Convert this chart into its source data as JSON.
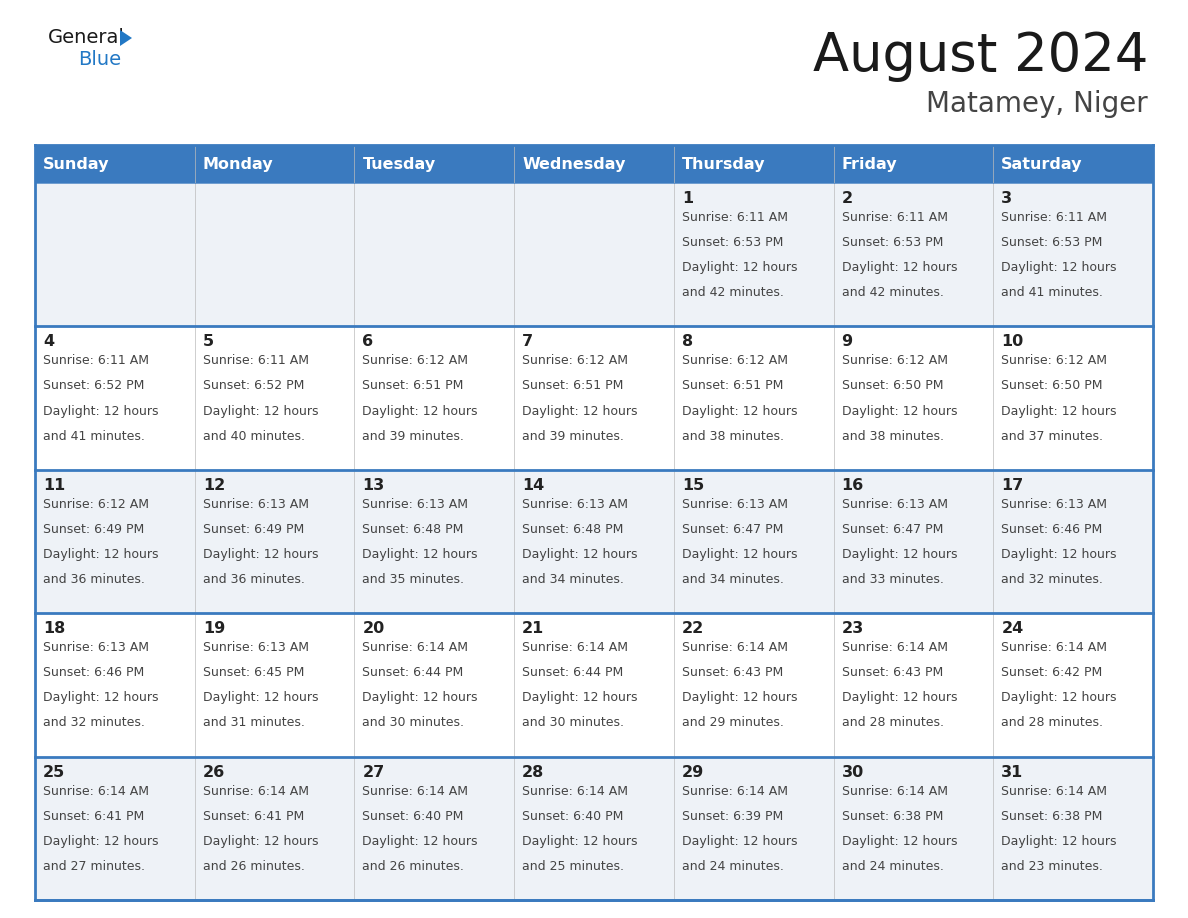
{
  "title": "August 2024",
  "subtitle": "Matamey, Niger",
  "header_color": "#3a7abf",
  "header_text_color": "#ffffff",
  "row_color_odd": "#eef2f7",
  "row_color_even": "#ffffff",
  "border_color": "#3a7abf",
  "text_color": "#333333",
  "day_headers": [
    "Sunday",
    "Monday",
    "Tuesday",
    "Wednesday",
    "Thursday",
    "Friday",
    "Saturday"
  ],
  "calendar_data": [
    [
      {
        "day": "",
        "sunrise": "",
        "sunset": "",
        "daylight": ""
      },
      {
        "day": "",
        "sunrise": "",
        "sunset": "",
        "daylight": ""
      },
      {
        "day": "",
        "sunrise": "",
        "sunset": "",
        "daylight": ""
      },
      {
        "day": "",
        "sunrise": "",
        "sunset": "",
        "daylight": ""
      },
      {
        "day": "1",
        "sunrise": "6:11 AM",
        "sunset": "6:53 PM",
        "daylight": "12 hours and 42 minutes."
      },
      {
        "day": "2",
        "sunrise": "6:11 AM",
        "sunset": "6:53 PM",
        "daylight": "12 hours and 42 minutes."
      },
      {
        "day": "3",
        "sunrise": "6:11 AM",
        "sunset": "6:53 PM",
        "daylight": "12 hours and 41 minutes."
      }
    ],
    [
      {
        "day": "4",
        "sunrise": "6:11 AM",
        "sunset": "6:52 PM",
        "daylight": "12 hours and 41 minutes."
      },
      {
        "day": "5",
        "sunrise": "6:11 AM",
        "sunset": "6:52 PM",
        "daylight": "12 hours and 40 minutes."
      },
      {
        "day": "6",
        "sunrise": "6:12 AM",
        "sunset": "6:51 PM",
        "daylight": "12 hours and 39 minutes."
      },
      {
        "day": "7",
        "sunrise": "6:12 AM",
        "sunset": "6:51 PM",
        "daylight": "12 hours and 39 minutes."
      },
      {
        "day": "8",
        "sunrise": "6:12 AM",
        "sunset": "6:51 PM",
        "daylight": "12 hours and 38 minutes."
      },
      {
        "day": "9",
        "sunrise": "6:12 AM",
        "sunset": "6:50 PM",
        "daylight": "12 hours and 38 minutes."
      },
      {
        "day": "10",
        "sunrise": "6:12 AM",
        "sunset": "6:50 PM",
        "daylight": "12 hours and 37 minutes."
      }
    ],
    [
      {
        "day": "11",
        "sunrise": "6:12 AM",
        "sunset": "6:49 PM",
        "daylight": "12 hours and 36 minutes."
      },
      {
        "day": "12",
        "sunrise": "6:13 AM",
        "sunset": "6:49 PM",
        "daylight": "12 hours and 36 minutes."
      },
      {
        "day": "13",
        "sunrise": "6:13 AM",
        "sunset": "6:48 PM",
        "daylight": "12 hours and 35 minutes."
      },
      {
        "day": "14",
        "sunrise": "6:13 AM",
        "sunset": "6:48 PM",
        "daylight": "12 hours and 34 minutes."
      },
      {
        "day": "15",
        "sunrise": "6:13 AM",
        "sunset": "6:47 PM",
        "daylight": "12 hours and 34 minutes."
      },
      {
        "day": "16",
        "sunrise": "6:13 AM",
        "sunset": "6:47 PM",
        "daylight": "12 hours and 33 minutes."
      },
      {
        "day": "17",
        "sunrise": "6:13 AM",
        "sunset": "6:46 PM",
        "daylight": "12 hours and 32 minutes."
      }
    ],
    [
      {
        "day": "18",
        "sunrise": "6:13 AM",
        "sunset": "6:46 PM",
        "daylight": "12 hours and 32 minutes."
      },
      {
        "day": "19",
        "sunrise": "6:13 AM",
        "sunset": "6:45 PM",
        "daylight": "12 hours and 31 minutes."
      },
      {
        "day": "20",
        "sunrise": "6:14 AM",
        "sunset": "6:44 PM",
        "daylight": "12 hours and 30 minutes."
      },
      {
        "day": "21",
        "sunrise": "6:14 AM",
        "sunset": "6:44 PM",
        "daylight": "12 hours and 30 minutes."
      },
      {
        "day": "22",
        "sunrise": "6:14 AM",
        "sunset": "6:43 PM",
        "daylight": "12 hours and 29 minutes."
      },
      {
        "day": "23",
        "sunrise": "6:14 AM",
        "sunset": "6:43 PM",
        "daylight": "12 hours and 28 minutes."
      },
      {
        "day": "24",
        "sunrise": "6:14 AM",
        "sunset": "6:42 PM",
        "daylight": "12 hours and 28 minutes."
      }
    ],
    [
      {
        "day": "25",
        "sunrise": "6:14 AM",
        "sunset": "6:41 PM",
        "daylight": "12 hours and 27 minutes."
      },
      {
        "day": "26",
        "sunrise": "6:14 AM",
        "sunset": "6:41 PM",
        "daylight": "12 hours and 26 minutes."
      },
      {
        "day": "27",
        "sunrise": "6:14 AM",
        "sunset": "6:40 PM",
        "daylight": "12 hours and 26 minutes."
      },
      {
        "day": "28",
        "sunrise": "6:14 AM",
        "sunset": "6:40 PM",
        "daylight": "12 hours and 25 minutes."
      },
      {
        "day": "29",
        "sunrise": "6:14 AM",
        "sunset": "6:39 PM",
        "daylight": "12 hours and 24 minutes."
      },
      {
        "day": "30",
        "sunrise": "6:14 AM",
        "sunset": "6:38 PM",
        "daylight": "12 hours and 24 minutes."
      },
      {
        "day": "31",
        "sunrise": "6:14 AM",
        "sunset": "6:38 PM",
        "daylight": "12 hours and 23 minutes."
      }
    ]
  ],
  "logo_general_color": "#1a1a1a",
  "logo_blue_color": "#2278c5",
  "logo_triangle_color": "#2278c5",
  "title_color": "#1a1a1a",
  "subtitle_color": "#444444"
}
